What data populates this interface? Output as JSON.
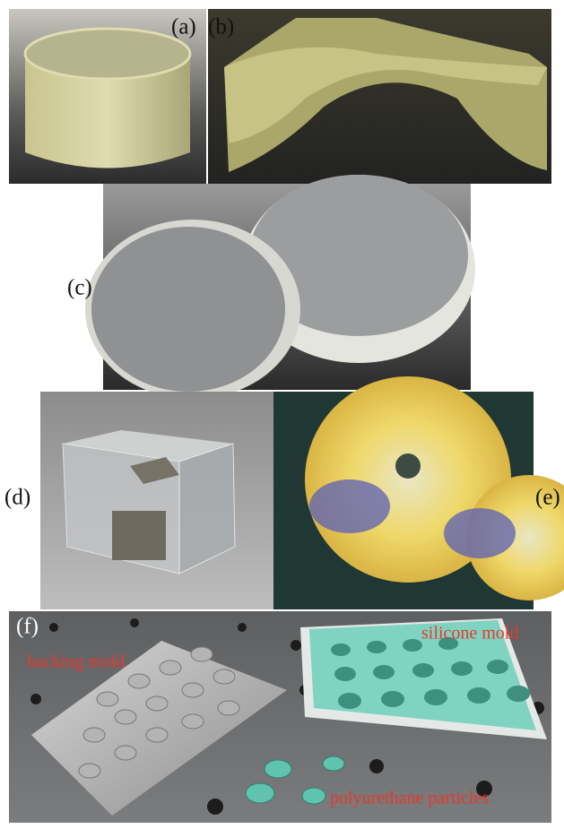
{
  "panels": [
    {
      "label": "(a)"
    },
    {
      "label": "(b)"
    },
    {
      "label": "(c)"
    },
    {
      "label": "(d)"
    },
    {
      "label": "(e)"
    },
    {
      "label": "(f)"
    }
  ],
  "annotations": [
    "backing mold",
    "silicone mold",
    "polyurethane particles"
  ]
}
